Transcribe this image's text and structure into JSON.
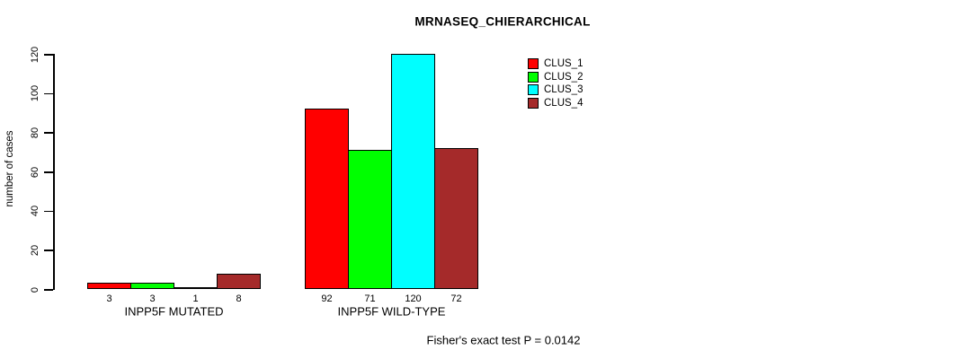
{
  "title": "MRNASEQ_CHIERARCHICAL",
  "ylabel": "number of cases",
  "footer": "Fisher's exact test P = 0.0142",
  "chart_data": {
    "type": "bar",
    "title": "MRNASEQ_CHIERARCHICAL",
    "xlabel": "",
    "ylabel": "number of cases",
    "categories": [
      "INPP5F MUTATED",
      "INPP5F WILD-TYPE"
    ],
    "series": [
      {
        "name": "CLUS_1",
        "color": "#ff0000",
        "values": [
          3,
          92
        ]
      },
      {
        "name": "CLUS_2",
        "color": "#00ff00",
        "values": [
          3,
          71
        ]
      },
      {
        "name": "CLUS_3",
        "color": "#00ffff",
        "values": [
          1,
          120
        ]
      },
      {
        "name": "CLUS_4",
        "color": "#a52a2a",
        "values": [
          8,
          72
        ]
      }
    ],
    "yticks": [
      0,
      20,
      40,
      60,
      80,
      100,
      120
    ],
    "ylim": [
      0,
      120
    ],
    "grid": false,
    "bar_value_labels": true,
    "legend_position": "top-right",
    "annotation": "Fisher's exact test P = 0.0142"
  }
}
